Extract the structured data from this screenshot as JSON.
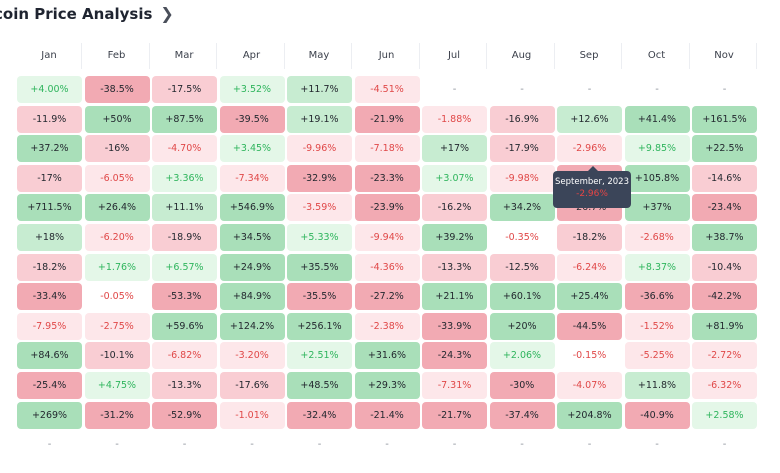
{
  "header": {
    "title": "coin Price Analysis",
    "chevron_icon": "chevron-right-icon"
  },
  "months": [
    "Jan",
    "Feb",
    "Mar",
    "Apr",
    "May",
    "Jun",
    "Jul",
    "Aug",
    "Sep",
    "Oct",
    "Nov"
  ],
  "rows": [
    [
      "+4.00%",
      "-38.5%",
      "-17.5%",
      "+3.52%",
      "+11.7%",
      "-4.51%",
      "-",
      "-",
      "-",
      "-",
      "-"
    ],
    [
      "-11.9%",
      "+50%",
      "+87.5%",
      "-39.5%",
      "+19.1%",
      "-21.9%",
      "-1.88%",
      "-16.9%",
      "+12.6%",
      "+41.4%",
      "+161.5%"
    ],
    [
      "+37.2%",
      "-16%",
      "-4.70%",
      "+3.45%",
      "-9.96%",
      "-7.18%",
      "+17%",
      "-17.9%",
      "-2.96%",
      "+9.85%",
      "+22.5%"
    ],
    [
      "-17%",
      "-6.05%",
      "+3.36%",
      "-7.34%",
      "-32.9%",
      "-23.3%",
      "+3.07%",
      "-9.98%",
      "-26.7%",
      "+105.8%",
      "-14.6%"
    ],
    [
      "+711.5%",
      "+26.4%",
      "+11.1%",
      "+546.9%",
      "-3.59%",
      "-23.9%",
      "-16.2%",
      "+34.2%",
      "-26.7%",
      "+37%",
      "-23.4%"
    ],
    [
      "+18%",
      "-6.20%",
      "-18.9%",
      "+34.5%",
      "+5.33%",
      "-9.94%",
      "+39.2%",
      "-0.35%",
      "-18.2%",
      "-2.68%",
      "+38.7%"
    ],
    [
      "-18.2%",
      "+1.76%",
      "+6.57%",
      "+24.9%",
      "+35.5%",
      "-4.36%",
      "-13.3%",
      "-12.5%",
      "-6.24%",
      "+8.37%",
      "-10.4%"
    ],
    [
      "-33.4%",
      "-0.05%",
      "-53.3%",
      "+84.9%",
      "-35.5%",
      "-27.2%",
      "+21.1%",
      "+60.1%",
      "+25.4%",
      "-36.6%",
      "-42.2%"
    ],
    [
      "-7.95%",
      "-2.75%",
      "+59.6%",
      "+124.2%",
      "+256.1%",
      "-2.38%",
      "-33.9%",
      "+20%",
      "-44.5%",
      "-1.52%",
      "+81.9%"
    ],
    [
      "+84.6%",
      "-10.1%",
      "-6.82%",
      "-3.20%",
      "+2.51%",
      "+31.6%",
      "-24.3%",
      "+2.06%",
      "-0.15%",
      "-5.25%",
      "-2.72%"
    ],
    [
      "-25.4%",
      "+4.75%",
      "-13.3%",
      "-17.6%",
      "+48.5%",
      "+29.3%",
      "-7.31%",
      "-30%",
      "-4.07%",
      "+11.8%",
      "-6.32%"
    ],
    [
      "+269%",
      "-31.2%",
      "-52.9%",
      "-1.01%",
      "-32.4%",
      "-21.4%",
      "-21.7%",
      "-37.4%",
      "+204.8%",
      "-40.9%",
      "+2.58%"
    ],
    [
      "-",
      "-",
      "-",
      "-",
      "-",
      "-",
      "-",
      "-",
      "-",
      "-",
      "-"
    ]
  ],
  "tooltip": {
    "date": "September, 2023",
    "value": "-2.96%"
  },
  "colors": {
    "pos_text": "#2fb55d",
    "neg_text": "#e04848",
    "pos_light": "#e4f7e8",
    "pos_mid": "#c7ecd1",
    "pos_strong": "#a9dfb9",
    "neg_light": "#fde7ea",
    "neg_mid": "#f9cdd3",
    "neg_strong": "#f2aab3",
    "tooltip_bg": "#3b4559"
  }
}
